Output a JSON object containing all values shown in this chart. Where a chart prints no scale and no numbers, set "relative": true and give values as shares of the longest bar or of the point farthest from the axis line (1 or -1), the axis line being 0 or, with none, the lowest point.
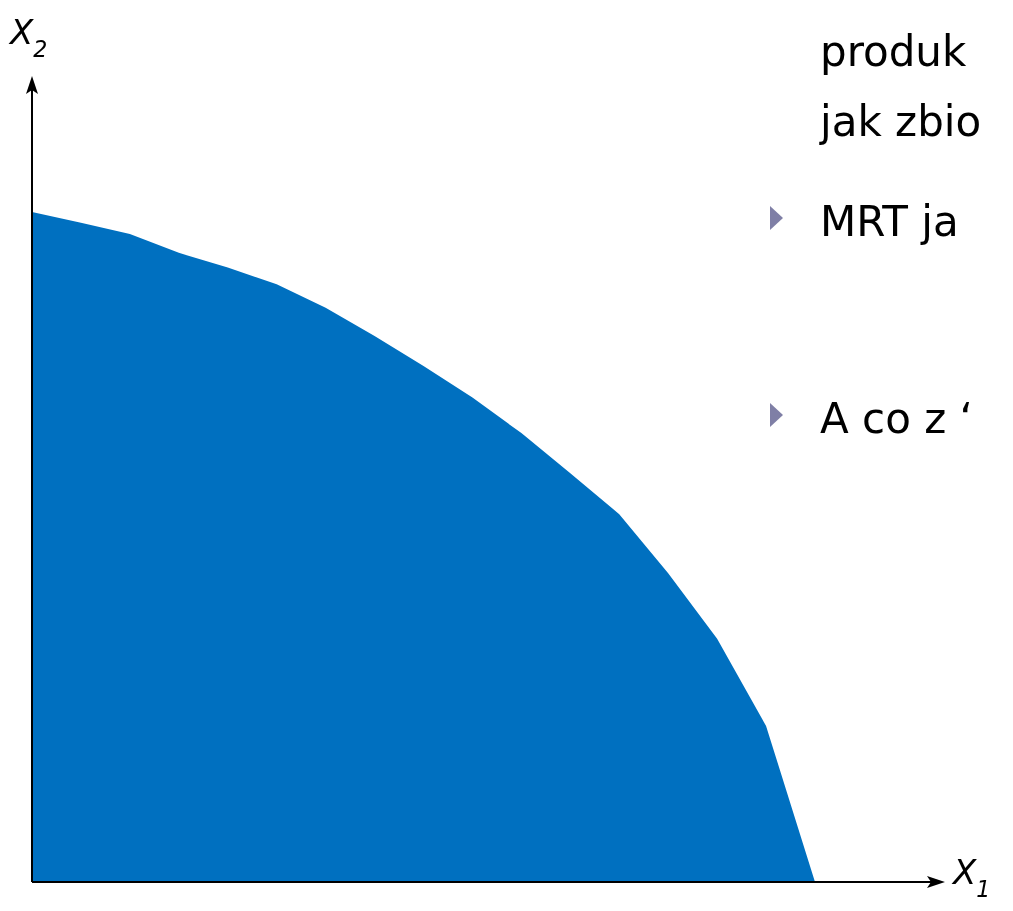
{
  "chart_data": {
    "type": "area",
    "relative": true,
    "xlabel": "X$_{1}$",
    "ylabel": "X$_{2}$",
    "categories": [
      null,
      null,
      null,
      null,
      null,
      null,
      null,
      null,
      null,
      null,
      null,
      null,
      null,
      null,
      null,
      null,
      null
    ],
    "series": [
      {
        "color": "#0070c0",
        "values": [
          1.0,
          0.984,
          0.967,
          0.939,
          0.917,
          0.892,
          0.857,
          0.815,
          0.77,
          0.723,
          0.67,
          0.61,
          0.549,
          0.461,
          0.363,
          0.233,
          0
        ]
      }
    ],
    "annotations": [
      "produk",
      "jak zbio",
      "MRT ja",
      "A co z ‘"
    ]
  }
}
